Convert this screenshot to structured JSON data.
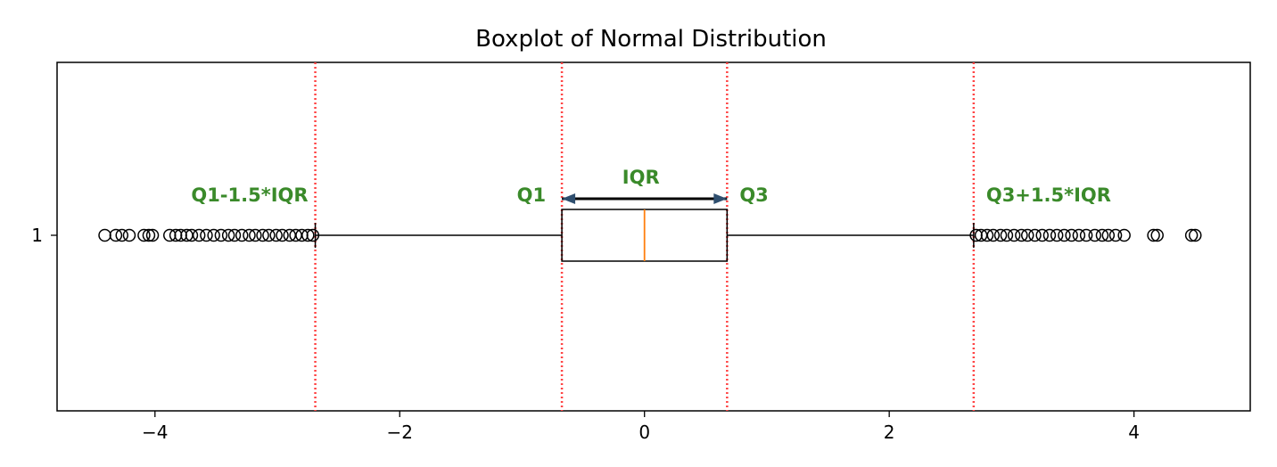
{
  "chart_data": {
    "type": "boxplot",
    "title": "Boxplot of Normal Distribution",
    "orientation": "horizontal",
    "xlabel": "",
    "ylabel": "",
    "xlim": [
      -4.8,
      4.95
    ],
    "xticks": [
      -4,
      -2,
      0,
      2,
      4
    ],
    "xtick_labels": [
      "−4",
      "−2",
      "0",
      "2",
      "4"
    ],
    "yticks": [
      "1"
    ],
    "grid": false,
    "box": {
      "category": "1",
      "q1": -0.675,
      "median": 0.0,
      "q3": 0.675,
      "whisker_low": -2.69,
      "whisker_high": 2.69,
      "outliers_low": [
        -4.41,
        -4.32,
        -4.27,
        -4.21,
        -4.09,
        -4.05,
        -4.02,
        -3.88,
        -3.83,
        -3.79,
        -3.74,
        -3.7,
        -3.64,
        -3.58,
        -3.52,
        -3.46,
        -3.4,
        -3.35,
        -3.29,
        -3.23,
        -3.18,
        -3.12,
        -3.07,
        -3.01,
        -2.96,
        -2.9,
        -2.85,
        -2.8,
        -2.75,
        -2.71
      ],
      "outliers_high": [
        2.71,
        2.75,
        2.8,
        2.85,
        2.91,
        2.96,
        3.02,
        3.08,
        3.13,
        3.19,
        3.25,
        3.31,
        3.37,
        3.43,
        3.49,
        3.55,
        3.61,
        3.68,
        3.74,
        3.79,
        3.85,
        3.92,
        4.16,
        4.19,
        4.47,
        4.5
      ]
    },
    "reference_lines": [
      {
        "x": -2.69,
        "label": "Q1-1.5*IQR"
      },
      {
        "x": -0.675,
        "label": "Q1"
      },
      {
        "x": 0.675,
        "label": "Q3"
      },
      {
        "x": 2.69,
        "label": "Q3+1.5*IQR"
      }
    ],
    "iqr_annotation": {
      "from": -0.675,
      "to": 0.675,
      "label": "IQR"
    },
    "colors": {
      "box": "#000000",
      "median": "#ff7f0e",
      "reference_line": "#ff4444",
      "annotation": "#3a8a2a",
      "arrow": "#000000",
      "arrowhead": "#2f4f6f"
    }
  }
}
